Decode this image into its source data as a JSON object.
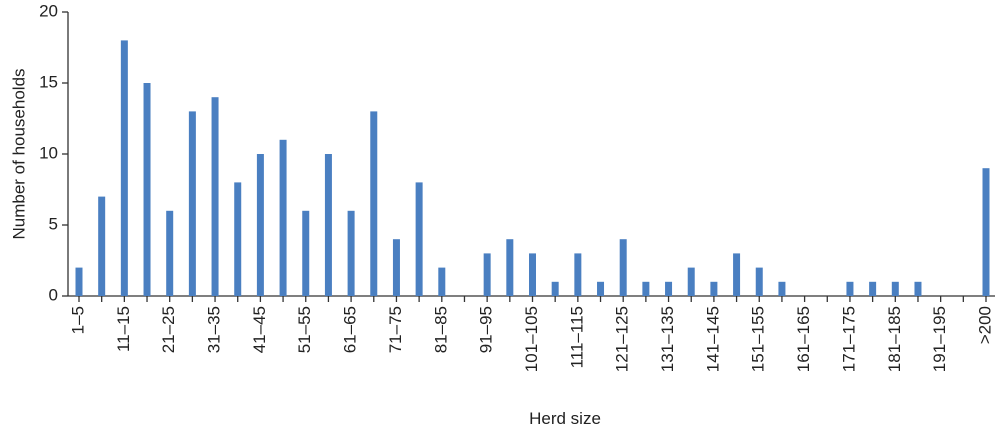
{
  "chart_data": {
    "type": "bar",
    "x_label": "Herd size",
    "y_label": "Number of households",
    "categories": [
      "1–5",
      null,
      "11–15",
      null,
      "21–25",
      null,
      "31–35",
      null,
      "41–45",
      null,
      "51–55",
      null,
      "61–65",
      null,
      "71–75",
      null,
      "81–85",
      null,
      "91–95",
      null,
      "101–105",
      null,
      "111–115",
      null,
      "121–125",
      null,
      "131–135",
      null,
      "141–145",
      null,
      "151–155",
      null,
      "161–165",
      null,
      "171–175",
      null,
      "181–185",
      null,
      "191–195",
      null,
      ">200"
    ],
    "values": [
      2,
      7,
      18,
      15,
      6,
      13,
      14,
      8,
      10,
      11,
      6,
      10,
      6,
      13,
      4,
      8,
      2,
      0,
      3,
      4,
      3,
      1,
      3,
      1,
      4,
      1,
      1,
      2,
      1,
      3,
      2,
      1,
      0,
      0,
      1,
      1,
      1,
      1,
      0,
      0,
      9
    ],
    "color": "#4a7fc1",
    "ylim": [
      0,
      20
    ],
    "yticks": [
      0,
      5,
      10,
      15,
      20
    ],
    "grid": false
  }
}
